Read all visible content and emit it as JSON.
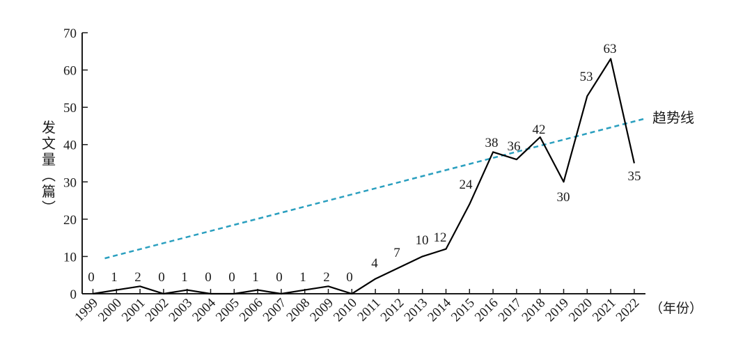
{
  "chart_data": {
    "type": "line",
    "x": [
      "1999",
      "2000",
      "2001",
      "2002",
      "2003",
      "2004",
      "2005",
      "2006",
      "2007",
      "2008",
      "2009",
      "2010",
      "2011",
      "2012",
      "2013",
      "2014",
      "2015",
      "2016",
      "2017",
      "2018",
      "2019",
      "2020",
      "2021",
      "2022"
    ],
    "series": [
      {
        "values": [
          0,
          1,
          2,
          0,
          1,
          0,
          0,
          1,
          0,
          1,
          2,
          0,
          4,
          7,
          10,
          12,
          24,
          38,
          36,
          42,
          30,
          53,
          63,
          35
        ],
        "color": "#000000"
      }
    ],
    "trendline": {
      "label": "趋势线",
      "start": 9.5,
      "end": 47,
      "color": "#2a9fbf",
      "style": "dashed"
    },
    "ylabel": "发文量（篇）",
    "xlabel": "（年份）",
    "ylim": [
      0,
      70
    ],
    "yticks": [
      0,
      10,
      20,
      30,
      40,
      50,
      60,
      70
    ],
    "grid": false,
    "data_labels": true
  }
}
